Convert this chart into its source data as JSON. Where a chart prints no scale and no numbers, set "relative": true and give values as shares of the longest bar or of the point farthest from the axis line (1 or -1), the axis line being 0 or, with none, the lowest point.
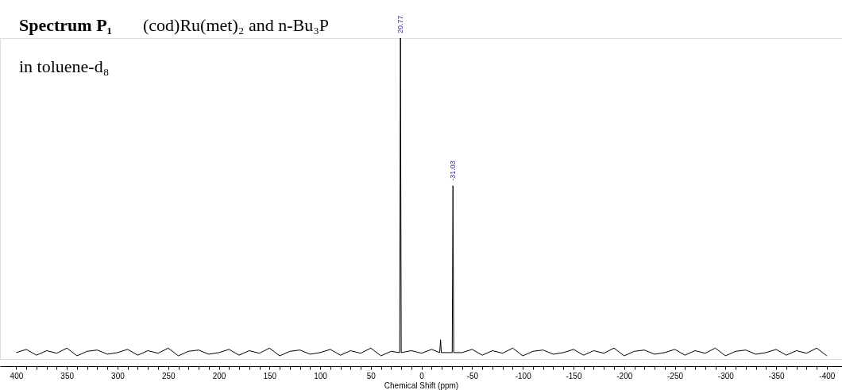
{
  "chart_data": {
    "type": "line",
    "relative": true,
    "title": "Spectrum P₁",
    "subtitle": "(cod)Ru(met)₂ and n-Bu₃P",
    "xlabel": "Chemical Shift (ppm)",
    "annotations": [
      "in toluene-d₈",
      {
        "text": "20.77",
        "x": 20.77,
        "y": 1
      },
      {
        "text": "-31.03",
        "x": -31.03,
        "y": 0.54
      }
    ],
    "xlim": [
      416,
      -415
    ],
    "xticks": [
      400,
      {
        "value": 390,
        "label": null
      },
      {
        "value": 380,
        "label": null
      },
      {
        "value": 370,
        "label": null
      },
      {
        "value": 360,
        "label": null
      },
      350,
      {
        "value": 340,
        "label": null
      },
      {
        "value": 330,
        "label": null
      },
      {
        "value": 320,
        "label": null
      },
      {
        "value": 310,
        "label": null
      },
      300,
      {
        "value": 290,
        "label": null
      },
      {
        "value": 280,
        "label": null
      },
      {
        "value": 270,
        "label": null
      },
      {
        "value": 260,
        "label": null
      },
      250,
      {
        "value": 240,
        "label": null
      },
      {
        "value": 230,
        "label": null
      },
      {
        "value": 220,
        "label": null
      },
      {
        "value": 210,
        "label": null
      },
      200,
      {
        "value": 190,
        "label": null
      },
      {
        "value": 180,
        "label": null
      },
      {
        "value": 170,
        "label": null
      },
      {
        "value": 160,
        "label": null
      },
      150,
      {
        "value": 140,
        "label": null
      },
      {
        "value": 130,
        "label": null
      },
      {
        "value": 120,
        "label": null
      },
      {
        "value": 110,
        "label": null
      },
      100,
      {
        "value": 90,
        "label": null
      },
      {
        "value": 80,
        "label": null
      },
      {
        "value": 70,
        "label": null
      },
      {
        "value": 60,
        "label": null
      },
      50,
      {
        "value": 40,
        "label": null
      },
      {
        "value": 30,
        "label": null
      },
      {
        "value": 20,
        "label": null
      },
      {
        "value": 10,
        "label": null
      },
      0,
      {
        "value": -10,
        "label": null
      },
      {
        "value": -20,
        "label": null
      },
      {
        "value": -30,
        "label": null
      },
      {
        "value": -40,
        "label": null
      },
      -50,
      {
        "value": -60,
        "label": null
      },
      {
        "value": -70,
        "label": null
      },
      {
        "value": -80,
        "label": null
      },
      {
        "value": -90,
        "label": null
      },
      -100,
      {
        "value": -110,
        "label": null
      },
      {
        "value": -120,
        "label": null
      },
      {
        "value": -130,
        "label": null
      },
      {
        "value": -140,
        "label": null
      },
      -150,
      {
        "value": -160,
        "label": null
      },
      {
        "value": -170,
        "label": null
      },
      {
        "value": -180,
        "label": null
      },
      {
        "value": -190,
        "label": null
      },
      -200,
      {
        "value": -210,
        "label": null
      },
      {
        "value": -220,
        "label": null
      },
      {
        "value": -230,
        "label": null
      },
      {
        "value": -240,
        "label": null
      },
      -250,
      {
        "value": -260,
        "label": null
      },
      {
        "value": -270,
        "label": null
      },
      {
        "value": -280,
        "label": null
      },
      {
        "value": -290,
        "label": null
      },
      -300,
      {
        "value": -310,
        "label": null
      },
      {
        "value": -320,
        "label": null
      },
      {
        "value": -330,
        "label": null
      },
      {
        "value": -340,
        "label": null
      },
      -350,
      {
        "value": -360,
        "label": null
      },
      {
        "value": -370,
        "label": null
      },
      {
        "value": -380,
        "label": null
      },
      {
        "value": -390,
        "label": null
      },
      -400
    ],
    "grid": false,
    "line_style": "solid",
    "series": [
      {
        "color": "#000000",
        "x": [
          400,
          390,
          380,
          370,
          360,
          350,
          340,
          330,
          320,
          310,
          300,
          290,
          280,
          270,
          260,
          250,
          240,
          230,
          220,
          210,
          200,
          190,
          180,
          170,
          160,
          150,
          140,
          130,
          120,
          110,
          100,
          90,
          80,
          70,
          60,
          50,
          40,
          30,
          21.5,
          20.77,
          20,
          10,
          0,
          -10,
          -18,
          -18.8,
          -19.6,
          -30.3,
          -31.03,
          -31.8,
          -40,
          -50,
          -60,
          -70,
          -80,
          -90,
          -100,
          -110,
          -120,
          -130,
          -140,
          -150,
          -160,
          -170,
          -180,
          -190,
          -200,
          -210,
          -220,
          -230,
          -240,
          -250,
          -260,
          -270,
          -280,
          -290,
          -300,
          -310,
          -320,
          -330,
          -340,
          -350,
          -360,
          -370,
          -380,
          -390,
          -400
        ],
        "values": [
          0.02,
          0.03,
          0.012,
          0.026,
          0.018,
          0.034,
          0.01,
          0.024,
          0.028,
          0.015,
          0.02,
          0.03,
          0.012,
          0.026,
          0.018,
          0.034,
          0.01,
          0.024,
          0.028,
          0.015,
          0.02,
          0.03,
          0.012,
          0.026,
          0.018,
          0.034,
          0.01,
          0.024,
          0.028,
          0.015,
          0.02,
          0.03,
          0.012,
          0.026,
          0.018,
          0.034,
          0.01,
          0.024,
          0.02,
          1,
          0.02,
          0.026,
          0.018,
          0.03,
          0.02,
          0.06,
          0.02,
          0.02,
          0.54,
          0.02,
          0.02,
          0.03,
          0.012,
          0.026,
          0.018,
          0.034,
          0.01,
          0.024,
          0.028,
          0.015,
          0.02,
          0.03,
          0.012,
          0.026,
          0.018,
          0.034,
          0.01,
          0.024,
          0.028,
          0.015,
          0.02,
          0.03,
          0.012,
          0.026,
          0.018,
          0.034,
          0.01,
          0.024,
          0.028,
          0.015,
          0.02,
          0.03,
          0.012,
          0.026,
          0.018,
          0.034,
          0.01
        ]
      }
    ]
  }
}
